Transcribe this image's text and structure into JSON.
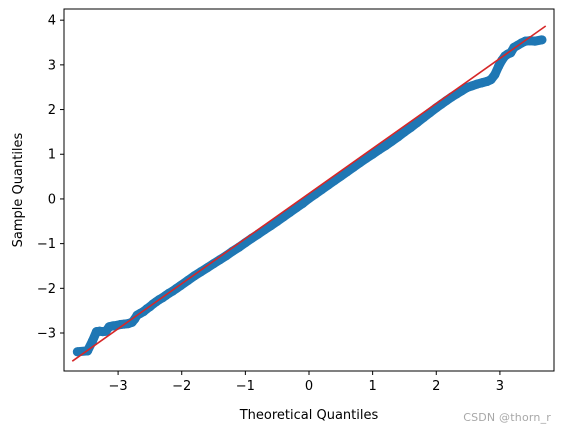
{
  "chart_data": {
    "type": "scatter",
    "title": "",
    "xlabel": "Theoretical Quantiles",
    "ylabel": "Sample Quantiles",
    "xlim": [
      -3.85,
      3.85
    ],
    "ylim": [
      -3.85,
      4.25
    ],
    "xticks": [
      -3,
      -2,
      -1,
      0,
      1,
      2,
      3
    ],
    "yticks": [
      -3,
      -2,
      -1,
      0,
      1,
      2,
      3,
      4
    ],
    "grid": false,
    "legend": "none",
    "series": [
      {
        "kind": "points",
        "color": "#1f77b4",
        "points": [
          [
            -3.64,
            -3.42
          ],
          [
            -3.48,
            -3.4
          ],
          [
            -3.4,
            -3.17
          ],
          [
            -3.34,
            -2.97
          ],
          [
            -3.29,
            -2.96
          ],
          [
            -3.24,
            -2.97
          ],
          [
            -3.19,
            -2.96
          ],
          [
            -3.14,
            -2.86
          ],
          [
            -3.08,
            -2.84
          ],
          [
            -3.02,
            -2.83
          ],
          [
            -2.96,
            -2.81
          ],
          [
            -2.9,
            -2.8
          ],
          [
            -2.84,
            -2.79
          ],
          [
            -2.78,
            -2.76
          ],
          [
            -2.74,
            -2.69
          ],
          [
            -2.7,
            -2.6
          ],
          [
            -2.65,
            -2.56
          ],
          [
            -2.6,
            -2.52
          ],
          [
            -2.55,
            -2.46
          ],
          [
            -2.5,
            -2.41
          ],
          [
            -2.45,
            -2.35
          ],
          [
            -2.4,
            -2.3
          ],
          [
            -2.35,
            -2.25
          ],
          [
            -2.3,
            -2.21
          ],
          [
            -2.25,
            -2.16
          ],
          [
            -2.2,
            -2.11
          ],
          [
            -2.14,
            -2.06
          ],
          [
            -2.08,
            -2.0
          ],
          [
            -2.02,
            -1.94
          ],
          [
            -1.9,
            -1.82
          ],
          [
            -1.8,
            -1.72
          ],
          [
            -1.7,
            -1.63
          ],
          [
            -1.6,
            -1.54
          ],
          [
            -1.5,
            -1.45
          ],
          [
            -1.4,
            -1.36
          ],
          [
            -1.3,
            -1.27
          ],
          [
            -1.2,
            -1.17
          ],
          [
            -1.1,
            -1.08
          ],
          [
            -1.0,
            -0.98
          ],
          [
            -0.9,
            -0.88
          ],
          [
            -0.8,
            -0.79
          ],
          [
            -0.7,
            -0.69
          ],
          [
            -0.6,
            -0.6
          ],
          [
            -0.5,
            -0.5
          ],
          [
            -0.4,
            -0.4
          ],
          [
            -0.3,
            -0.3
          ],
          [
            -0.2,
            -0.2
          ],
          [
            -0.1,
            -0.1
          ],
          [
            0.0,
            0.01
          ],
          [
            0.1,
            0.11
          ],
          [
            0.2,
            0.21
          ],
          [
            0.3,
            0.31
          ],
          [
            0.4,
            0.41
          ],
          [
            0.5,
            0.51
          ],
          [
            0.6,
            0.61
          ],
          [
            0.7,
            0.71
          ],
          [
            0.8,
            0.81
          ],
          [
            0.9,
            0.91
          ],
          [
            1.0,
            1.0
          ],
          [
            1.1,
            1.1
          ],
          [
            1.2,
            1.19
          ],
          [
            1.3,
            1.29
          ],
          [
            1.4,
            1.39
          ],
          [
            1.5,
            1.5
          ],
          [
            1.6,
            1.6
          ],
          [
            1.7,
            1.71
          ],
          [
            1.8,
            1.82
          ],
          [
            1.9,
            1.93
          ],
          [
            2.0,
            2.04
          ],
          [
            2.08,
            2.12
          ],
          [
            2.16,
            2.2
          ],
          [
            2.24,
            2.28
          ],
          [
            2.32,
            2.35
          ],
          [
            2.4,
            2.42
          ],
          [
            2.48,
            2.49
          ],
          [
            2.56,
            2.53
          ],
          [
            2.64,
            2.57
          ],
          [
            2.72,
            2.6
          ],
          [
            2.8,
            2.63
          ],
          [
            2.86,
            2.67
          ],
          [
            2.92,
            2.78
          ],
          [
            2.98,
            2.97
          ],
          [
            3.03,
            3.1
          ],
          [
            3.08,
            3.2
          ],
          [
            3.12,
            3.24
          ],
          [
            3.17,
            3.27
          ],
          [
            3.22,
            3.39
          ],
          [
            3.28,
            3.44
          ],
          [
            3.34,
            3.49
          ],
          [
            3.4,
            3.53
          ],
          [
            3.47,
            3.54
          ],
          [
            3.55,
            3.53
          ],
          [
            3.66,
            3.56
          ]
        ]
      },
      {
        "kind": "reference-line",
        "color": "#d62728",
        "points": [
          [
            -3.72,
            -3.63
          ],
          [
            3.72,
            3.87
          ]
        ]
      }
    ]
  },
  "watermark": "CSDN @thorn_r"
}
